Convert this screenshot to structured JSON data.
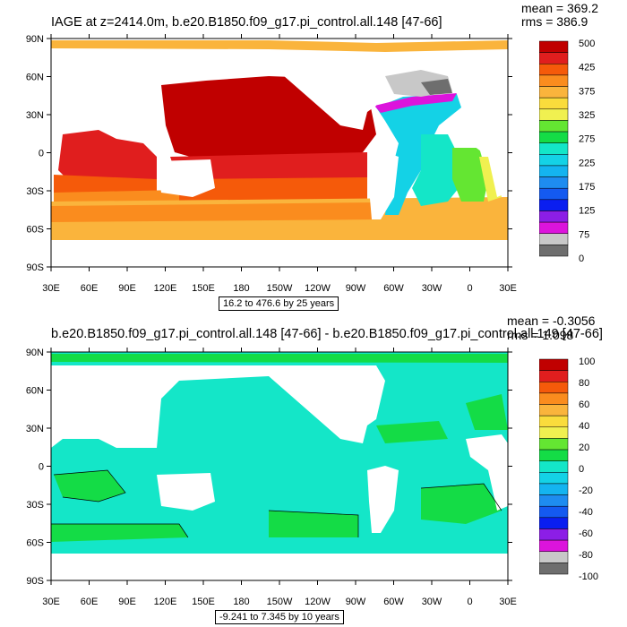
{
  "top": {
    "title": "IAGE at z=2414.0m, b.e20.B1850.f09_g17.pi_control.all.148 [47-66]",
    "mean": "mean = 369.2",
    "rms": "rms = 386.9",
    "range": "16.2 to 476.6 by 25 years",
    "colorbar": {
      "colors": [
        "#c00000",
        "#e01e1e",
        "#f55a0a",
        "#fa8c1e",
        "#fab43c",
        "#fadc3c",
        "#f0f050",
        "#64e632",
        "#14dc46",
        "#14e6c8",
        "#14d2e6",
        "#14b4f0",
        "#1e8cf0",
        "#145af0",
        "#0a1ef0",
        "#8c1ee6",
        "#dc14dc",
        "#c8c8c8",
        "#6e6e6e"
      ],
      "labels": [
        "500",
        "425",
        "375",
        "325",
        "275",
        "225",
        "175",
        "125",
        "75",
        "0"
      ]
    }
  },
  "bottom": {
    "title": "b.e20.B1850.f09_g17.pi_control.all.148 [47-66] - b.e20.B1850.f09_g17.pi_control.all.149 [47-66]",
    "mean": "mean = -0.3056",
    "rms": "rms = 1.098",
    "range": "-9.241 to 7.345 by 10 years",
    "colorbar": {
      "colors": [
        "#c00000",
        "#e01e1e",
        "#f55a0a",
        "#fa8c1e",
        "#fab43c",
        "#fadc3c",
        "#f0f050",
        "#64e632",
        "#14dc46",
        "#14e6c8",
        "#14d2e6",
        "#14b4f0",
        "#1e8cf0",
        "#145af0",
        "#0a1ef0",
        "#8c1ee6",
        "#dc14dc",
        "#c8c8c8",
        "#6e6e6e"
      ],
      "labels": [
        "100",
        "80",
        "60",
        "40",
        "20",
        "0",
        "-20",
        "-40",
        "-60",
        "-80",
        "-100"
      ]
    }
  },
  "axes": {
    "lat_labels": [
      "90N",
      "60N",
      "30N",
      "0",
      "30S",
      "60S",
      "90S"
    ],
    "lon_labels": [
      "30E",
      "60E",
      "90E",
      "120E",
      "150E",
      "180",
      "150W",
      "120W",
      "90W",
      "60W",
      "30W",
      "0",
      "30E"
    ]
  }
}
